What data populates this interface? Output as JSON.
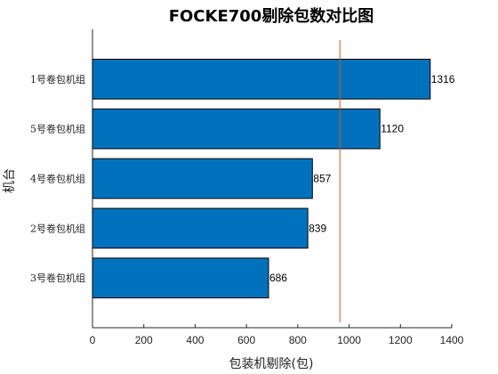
{
  "chart_data": {
    "type": "bar",
    "orientation": "horizontal",
    "title": "FOCKE700剔除包数对比图",
    "xlabel": "包装机剔除(包)",
    "ylabel": "机台",
    "categories": [
      "1号卷包机组",
      "5号卷包机组",
      "4号卷包机组",
      "2号卷包机组",
      "3号卷包机组"
    ],
    "values": [
      1316,
      1120,
      857,
      839,
      686
    ],
    "data_labels": [
      "1316",
      "1120",
      "857",
      "839",
      "686"
    ],
    "xlim": [
      0,
      1400
    ],
    "xticks": [
      "0",
      "200",
      "400",
      "600",
      "800",
      "1000",
      "1200",
      "1400"
    ],
    "reference_line_x": 964,
    "bar_color": "#0072BD",
    "reference_line_color": "#D95319",
    "grid": false
  }
}
